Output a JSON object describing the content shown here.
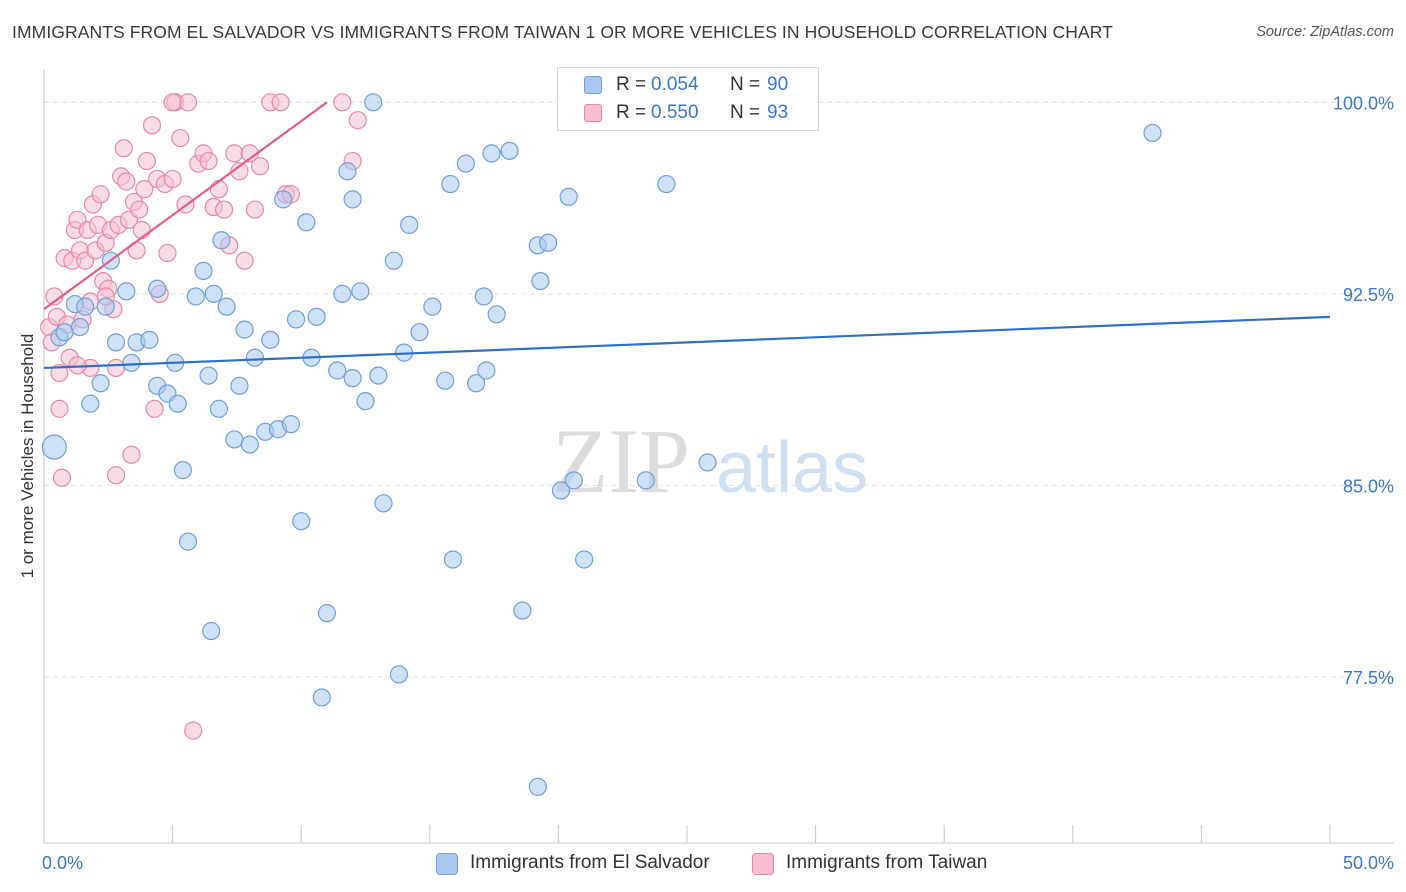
{
  "title": "IMMIGRANTS FROM EL SALVADOR VS IMMIGRANTS FROM TAIWAN 1 OR MORE VEHICLES IN HOUSEHOLD CORRELATION CHART",
  "source": "Source: ZipAtlas.com",
  "watermark": {
    "zip": "ZIP",
    "atlas": "atlas"
  },
  "colors": {
    "blue_fill": "#a8c8f0",
    "blue_stroke": "#6f9fdc",
    "blue_line": "#2f6fc8",
    "pink_fill": "#f6bfd0",
    "pink_stroke": "#e889a8",
    "pink_line": "#e0608a",
    "axis_text": "#3c78c8"
  },
  "stats": {
    "r_label": "R =",
    "n_label": "N =",
    "blue": {
      "r": "0.054",
      "n": "90"
    },
    "pink": {
      "r": "0.550",
      "n": "93"
    }
  },
  "chart_data": {
    "type": "scatter",
    "title": "IMMIGRANTS FROM EL SALVADOR VS IMMIGRANTS FROM TAIWAN 1 OR MORE VEHICLES IN HOUSEHOLD CORRELATION CHART",
    "xlabel": "",
    "ylabel": "1 or more Vehicles in Household",
    "xlim": [
      0,
      50
    ],
    "ylim": [
      71.0,
      101.5
    ],
    "x_tick_labels": {
      "min": "0.0%",
      "max": "50.0%"
    },
    "y_ticks": [
      {
        "value": 100.0,
        "label": "100.0%"
      },
      {
        "value": 92.5,
        "label": "92.5%"
      },
      {
        "value": 85.0,
        "label": "85.0%"
      },
      {
        "value": 77.5,
        "label": "77.5%"
      }
    ],
    "grid": true,
    "legend_position": "bottom-center",
    "series": [
      {
        "name": "Immigrants from El Salvador",
        "r": 0.054,
        "n": 90,
        "trend": {
          "x1": 0.0,
          "y1": 89.6,
          "x2": 50.0,
          "y2": 91.6
        },
        "points": [
          [
            0.4,
            86.5
          ],
          [
            0.6,
            90.8
          ],
          [
            0.8,
            91.0
          ],
          [
            1.2,
            92.1
          ],
          [
            1.8,
            88.2
          ],
          [
            1.4,
            91.2
          ],
          [
            1.6,
            92.0
          ],
          [
            2.2,
            89.0
          ],
          [
            2.4,
            92.0
          ],
          [
            2.6,
            93.8
          ],
          [
            2.8,
            90.6
          ],
          [
            3.2,
            92.6
          ],
          [
            3.4,
            89.8
          ],
          [
            3.6,
            90.6
          ],
          [
            4.1,
            90.7
          ],
          [
            4.4,
            92.7
          ],
          [
            4.4,
            88.9
          ],
          [
            4.8,
            88.6
          ],
          [
            5.1,
            89.8
          ],
          [
            5.2,
            88.2
          ],
          [
            5.4,
            85.6
          ],
          [
            5.6,
            82.8
          ],
          [
            5.9,
            92.4
          ],
          [
            6.2,
            93.4
          ],
          [
            6.4,
            89.3
          ],
          [
            6.5,
            79.3
          ],
          [
            6.6,
            92.5
          ],
          [
            6.9,
            94.6
          ],
          [
            6.8,
            88.0
          ],
          [
            7.1,
            92.0
          ],
          [
            7.4,
            86.8
          ],
          [
            7.6,
            88.9
          ],
          [
            7.8,
            91.1
          ],
          [
            8.0,
            86.6
          ],
          [
            8.2,
            90.0
          ],
          [
            8.6,
            87.1
          ],
          [
            8.8,
            90.7
          ],
          [
            9.1,
            87.2
          ],
          [
            9.3,
            96.2
          ],
          [
            9.6,
            87.4
          ],
          [
            9.8,
            91.5
          ],
          [
            10.0,
            83.6
          ],
          [
            10.2,
            95.3
          ],
          [
            10.4,
            90.0
          ],
          [
            10.6,
            91.6
          ],
          [
            10.8,
            76.7
          ],
          [
            11.0,
            80.0
          ],
          [
            11.4,
            89.5
          ],
          [
            11.6,
            92.5
          ],
          [
            11.8,
            97.3
          ],
          [
            12.0,
            96.2
          ],
          [
            12.0,
            89.2
          ],
          [
            12.3,
            92.6
          ],
          [
            12.5,
            88.3
          ],
          [
            12.8,
            100.0
          ],
          [
            13.0,
            89.3
          ],
          [
            13.2,
            84.3
          ],
          [
            13.6,
            93.8
          ],
          [
            13.8,
            77.6
          ],
          [
            14.0,
            90.2
          ],
          [
            14.2,
            95.2
          ],
          [
            14.6,
            91.0
          ],
          [
            15.1,
            92.0
          ],
          [
            15.6,
            89.1
          ],
          [
            15.8,
            96.8
          ],
          [
            15.9,
            82.1
          ],
          [
            16.4,
            97.6
          ],
          [
            16.8,
            89.0
          ],
          [
            17.1,
            92.4
          ],
          [
            17.2,
            89.5
          ],
          [
            17.4,
            98.0
          ],
          [
            17.6,
            91.7
          ],
          [
            18.1,
            98.1
          ],
          [
            18.6,
            80.1
          ],
          [
            19.2,
            73.2
          ],
          [
            19.2,
            94.4
          ],
          [
            19.3,
            93.0
          ],
          [
            19.6,
            94.5
          ],
          [
            20.1,
            84.8
          ],
          [
            20.4,
            96.3
          ],
          [
            20.6,
            85.2
          ],
          [
            21.0,
            82.1
          ],
          [
            23.4,
            85.2
          ],
          [
            24.2,
            96.8
          ],
          [
            25.8,
            85.9
          ],
          [
            43.1,
            98.8
          ]
        ]
      },
      {
        "name": "Immigrants from Taiwan",
        "r": 0.55,
        "n": 93,
        "trend": {
          "x1": 0.0,
          "y1": 91.9,
          "x2": 11.0,
          "y2": 100.0
        },
        "points": [
          [
            0.2,
            91.2
          ],
          [
            0.3,
            90.6
          ],
          [
            0.4,
            92.4
          ],
          [
            0.5,
            91.6
          ],
          [
            0.6,
            89.4
          ],
          [
            0.6,
            88.0
          ],
          [
            0.7,
            85.3
          ],
          [
            0.8,
            93.9
          ],
          [
            0.9,
            91.3
          ],
          [
            1.0,
            90.0
          ],
          [
            1.1,
            93.8
          ],
          [
            1.2,
            95.0
          ],
          [
            1.3,
            95.4
          ],
          [
            1.4,
            94.2
          ],
          [
            1.5,
            91.5
          ],
          [
            1.6,
            93.8
          ],
          [
            1.7,
            95.0
          ],
          [
            1.8,
            89.6
          ],
          [
            1.8,
            92.2
          ],
          [
            1.9,
            96.0
          ],
          [
            2.0,
            94.2
          ],
          [
            2.1,
            95.2
          ],
          [
            2.2,
            96.4
          ],
          [
            2.3,
            93.0
          ],
          [
            2.4,
            94.5
          ],
          [
            2.5,
            92.7
          ],
          [
            2.6,
            95.0
          ],
          [
            2.7,
            91.9
          ],
          [
            2.8,
            89.6
          ],
          [
            2.8,
            85.4
          ],
          [
            2.9,
            95.2
          ],
          [
            3.0,
            97.1
          ],
          [
            3.1,
            98.2
          ],
          [
            3.2,
            96.9
          ],
          [
            3.3,
            95.4
          ],
          [
            3.4,
            86.2
          ],
          [
            3.5,
            96.1
          ],
          [
            3.6,
            94.2
          ],
          [
            3.8,
            95.0
          ],
          [
            3.9,
            96.6
          ],
          [
            4.0,
            97.7
          ],
          [
            4.2,
            99.1
          ],
          [
            4.3,
            88.0
          ],
          [
            4.4,
            97.0
          ],
          [
            4.5,
            92.5
          ],
          [
            4.7,
            96.8
          ],
          [
            4.8,
            94.1
          ],
          [
            5.0,
            97.0
          ],
          [
            5.1,
            100.0
          ],
          [
            5.3,
            98.6
          ],
          [
            5.5,
            96.0
          ],
          [
            5.6,
            100.0
          ],
          [
            5.8,
            75.4
          ],
          [
            6.0,
            97.6
          ],
          [
            6.2,
            98.0
          ],
          [
            6.4,
            97.7
          ],
          [
            6.6,
            95.9
          ],
          [
            6.8,
            96.6
          ],
          [
            7.0,
            95.8
          ],
          [
            7.2,
            94.4
          ],
          [
            7.4,
            98.0
          ],
          [
            7.6,
            97.3
          ],
          [
            7.8,
            93.8
          ],
          [
            8.0,
            98.0
          ],
          [
            8.2,
            95.8
          ],
          [
            8.4,
            97.5
          ],
          [
            8.8,
            100.0
          ],
          [
            9.2,
            100.0
          ],
          [
            9.4,
            96.4
          ],
          [
            9.6,
            96.4
          ],
          [
            11.6,
            100.0
          ],
          [
            12.2,
            99.3
          ],
          [
            12.0,
            97.7
          ],
          [
            5.0,
            100.0
          ],
          [
            2.4,
            92.4
          ],
          [
            1.3,
            89.7
          ],
          [
            3.7,
            95.8
          ]
        ]
      }
    ]
  }
}
